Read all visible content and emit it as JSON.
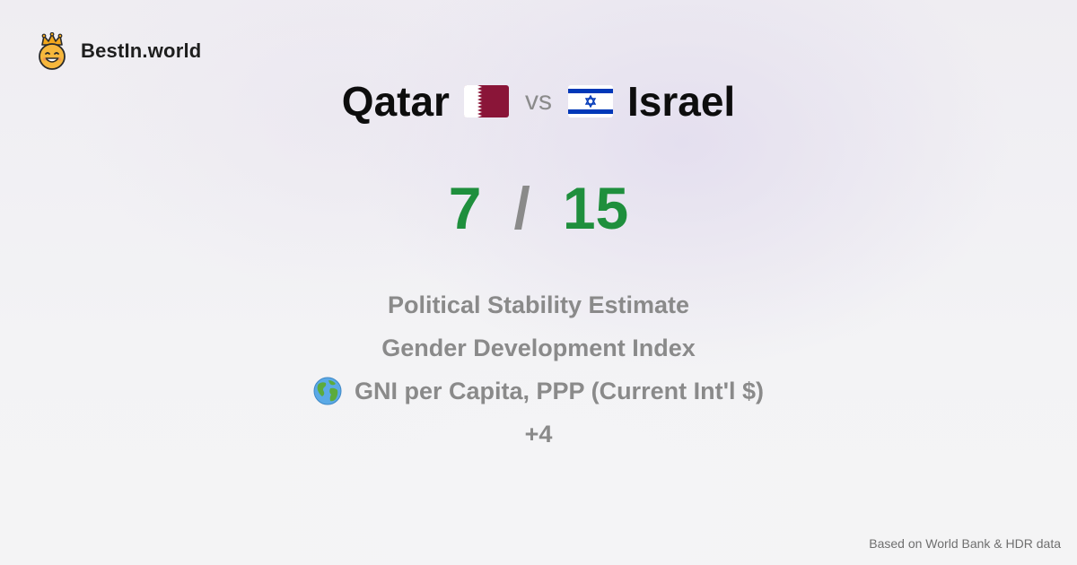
{
  "brand": {
    "name": "BestIn.world",
    "logo_icon": "crowned-smiley-icon"
  },
  "comparison": {
    "left_country": "Qatar",
    "left_flag_icon": "qatar-flag-icon",
    "vs_label": "vs",
    "right_country": "Israel",
    "right_flag_icon": "israel-flag-icon"
  },
  "score": {
    "left": "7",
    "separator": "/",
    "right": "15",
    "color": "#1f8f3d"
  },
  "indicators": [
    {
      "label": "Political Stability Estimate"
    },
    {
      "label": "Gender Development Index"
    },
    {
      "label": "GNI per Capita, PPP (Current Int'l $)",
      "icon": "globe-icon"
    }
  ],
  "more_label": "+4",
  "footer": {
    "source_note": "Based on World Bank & HDR data"
  }
}
